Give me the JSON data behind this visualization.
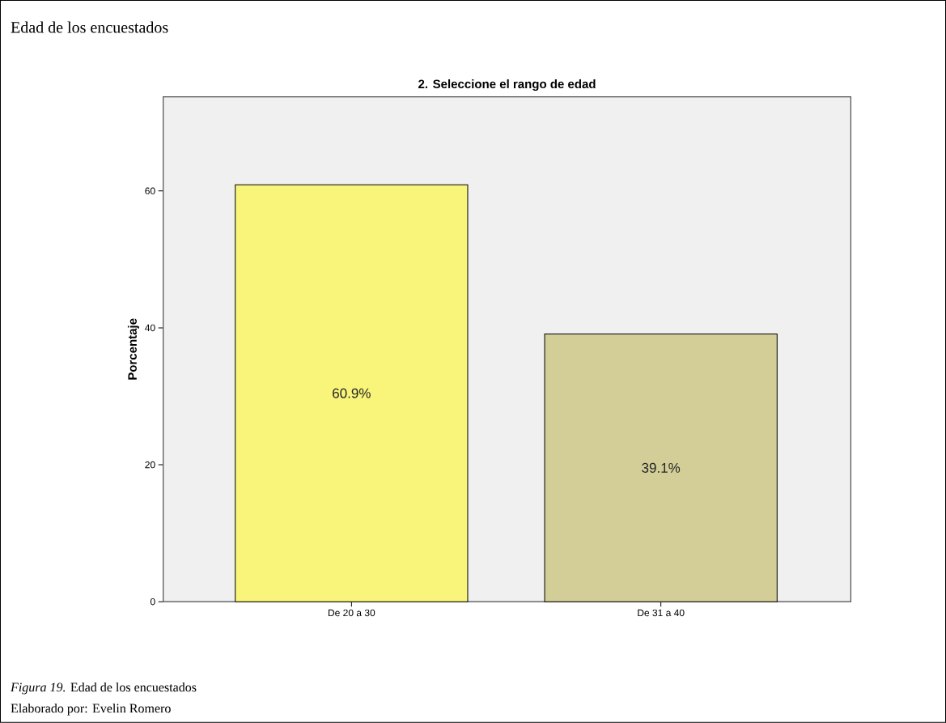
{
  "chart_data": {
    "type": "bar",
    "title": "Edad de los encuestados",
    "subtitle": "2. Seleccione el rango de edad",
    "ylabel": "Porcentaje",
    "categories": [
      "De 20 a 30",
      "De 31 a 40"
    ],
    "values": [
      60.9,
      39.1
    ],
    "colors": [
      "#f9f57a",
      "#d3ce98"
    ],
    "value_labels": [
      "60.9%",
      "39.1%"
    ],
    "ylim": [
      0,
      73.75
    ],
    "yticks": [
      0,
      20,
      40,
      60
    ],
    "annotations": [
      "*Figura 19.* Edad de los encuestados",
      "Elaborado por: Evelin Romero"
    ]
  }
}
